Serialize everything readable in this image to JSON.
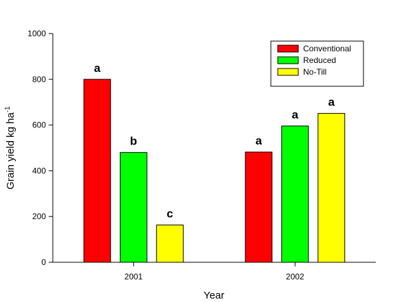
{
  "chart_data": {
    "type": "bar",
    "xlabel": "Year",
    "ylabel_main": "Grain yield kg ha",
    "ylabel_sup": "-1",
    "ylim": [
      0,
      1000
    ],
    "yticks": [
      "0",
      "200",
      "400",
      "600",
      "800",
      "1000"
    ],
    "categories": [
      "2001",
      "2002"
    ],
    "series": [
      {
        "name": "Conventional",
        "color": "#ff0000",
        "values": [
          800,
          482
        ],
        "labels": [
          "a",
          "a"
        ]
      },
      {
        "name": "Reduced",
        "color": "#00ff00",
        "values": [
          480,
          596
        ],
        "labels": [
          "b",
          "a"
        ]
      },
      {
        "name": "No-Till",
        "color": "#ffff00",
        "values": [
          163,
          651
        ],
        "labels": [
          "c",
          "a"
        ]
      }
    ],
    "legend_position": "top-right",
    "grid": false
  }
}
